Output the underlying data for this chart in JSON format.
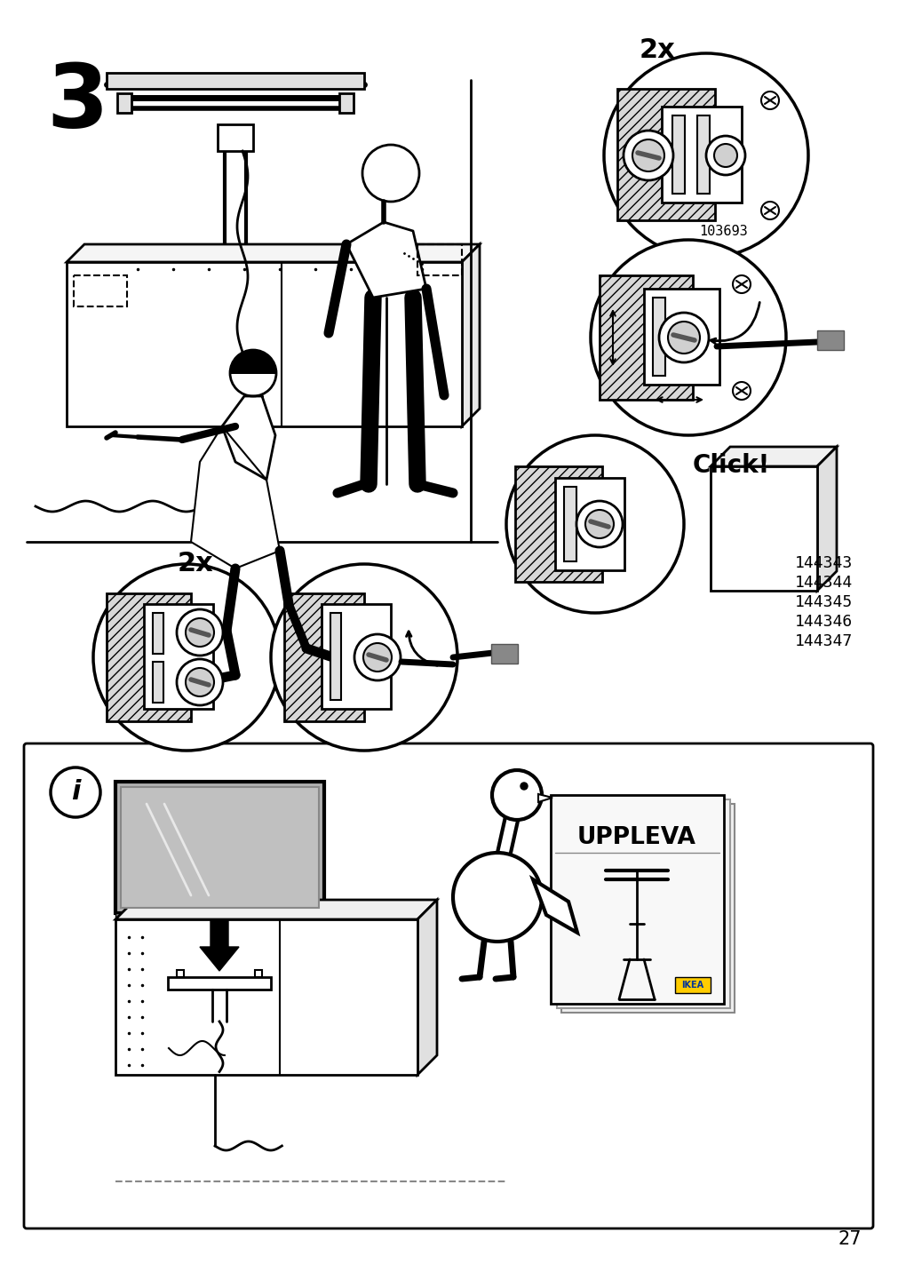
{
  "page_num": "27",
  "step_num": "3",
  "bg_color": "#ffffff",
  "text_2x_top": "2x",
  "text_2x_bottom": "2x",
  "text_click": "Click!",
  "text_uppleva": "UPPLEVA",
  "part_numbers": [
    "144343",
    "144344",
    "144345",
    "144346",
    "144347"
  ],
  "part_number_103693": "103693",
  "hatch_color": "#aaaaaa",
  "hatch_facecolor": "#d8d8d8"
}
